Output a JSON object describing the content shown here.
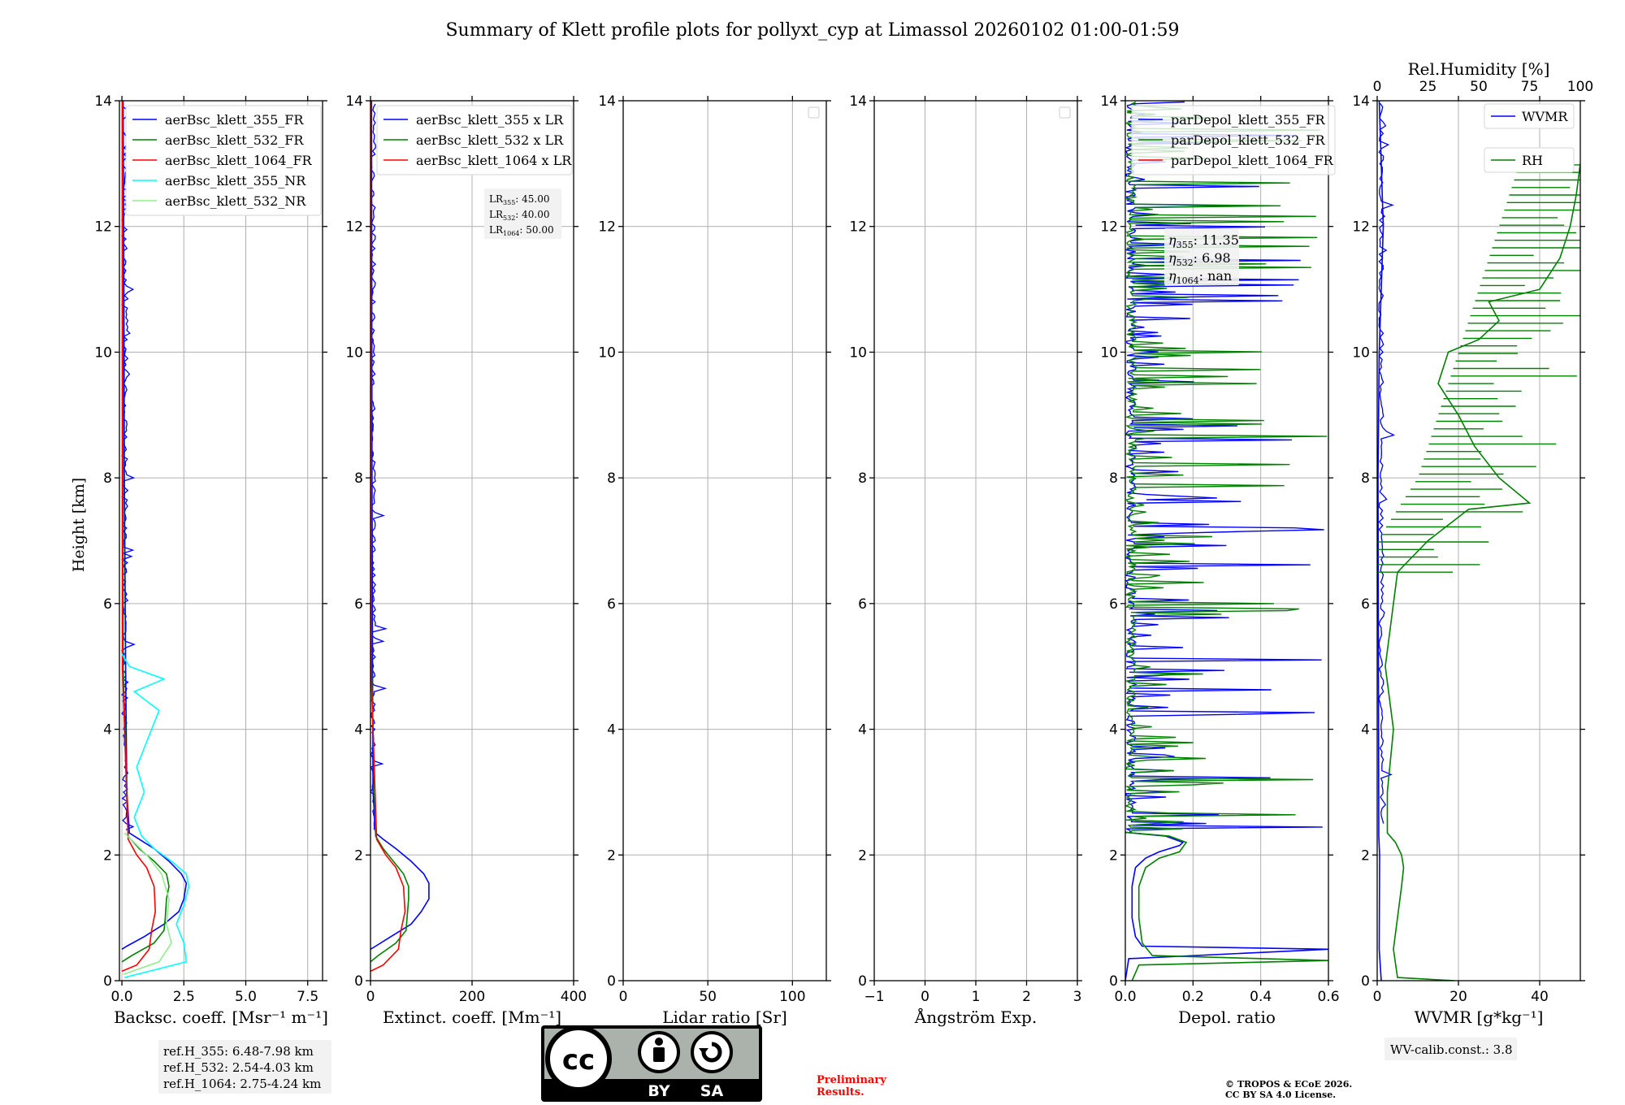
{
  "title": "Summary of Klett profile plots for pollyxt_cyp at Limassol 20260102 01:00-01:59",
  "ylabel": "Height [km]",
  "colors": {
    "blue": "#0000ff",
    "green": "#008000",
    "red": "#ff0000",
    "cyan": "#00ffff",
    "lightgreen": "#90ee90",
    "grid": "#b0b0b0",
    "legend_bg": "#f2f2f2",
    "prelim": "#ff0000"
  },
  "chart_data": [
    {
      "type": "line",
      "id": "bsc",
      "xlabel": "Backsc. coeff. [Msr⁻¹ m⁻¹]",
      "xlim": [
        -0.1,
        8.1
      ],
      "ylim": [
        0,
        14
      ],
      "xticks": [
        0,
        2.5,
        5,
        7.5
      ],
      "xtick_labels": [
        "0.0",
        "2.5",
        "5.0",
        "7.5"
      ],
      "yticks": [
        0,
        2,
        4,
        6,
        8,
        10,
        12,
        14
      ],
      "ytick_labels": [
        "0",
        "2",
        "4",
        "6",
        "8",
        "10",
        "12",
        "14"
      ],
      "legend": [
        "aerBsc_klett_355_FR",
        "aerBsc_klett_532_FR",
        "aerBsc_klett_1064_FR",
        "aerBsc_klett_355_NR",
        "aerBsc_klett_532_NR"
      ],
      "annotation": [
        "ref.H_355: 6.48-7.98 km",
        "ref.H_532: 2.54-4.03 km",
        "ref.H_1064: 2.75-4.24 km"
      ],
      "series": [
        {
          "name": "aerBsc_klett_355_FR",
          "color": "blue",
          "x": [
            0.0,
            0.2,
            0.9,
            1.7,
            2.3,
            2.5,
            2.6,
            2.4,
            1.9,
            1.3,
            0.7,
            0.3,
            0.2,
            0.15,
            0.1,
            0.08,
            0.05
          ],
          "y": [
            0.5,
            0.55,
            0.7,
            0.9,
            1.1,
            1.3,
            1.55,
            1.7,
            1.9,
            2.1,
            2.25,
            2.35,
            3.0,
            5.0,
            8.0,
            11.0,
            14.0
          ]
        },
        {
          "name": "aerBsc_klett_532_FR",
          "color": "green",
          "x": [
            0.0,
            0.4,
            1.3,
            1.7,
            1.75,
            1.8,
            1.9,
            1.8,
            1.3,
            0.7,
            0.25,
            0.05,
            0.03
          ],
          "y": [
            0.3,
            0.4,
            0.6,
            0.8,
            1.0,
            1.3,
            1.5,
            1.7,
            1.9,
            2.1,
            2.3,
            5.0,
            14.0
          ]
        },
        {
          "name": "aerBsc_klett_1064_FR",
          "color": "red",
          "x": [
            0.0,
            0.6,
            1.1,
            1.2,
            1.35,
            1.3,
            1.0,
            0.6,
            0.25,
            0.02,
            0.01
          ],
          "y": [
            0.15,
            0.25,
            0.5,
            0.8,
            1.1,
            1.5,
            1.8,
            2.0,
            2.25,
            5.0,
            14.0
          ]
        },
        {
          "name": "aerBsc_klett_355_NR",
          "color": "cyan",
          "x": [
            0.1,
            2.6,
            2.5,
            2.2,
            2.5,
            2.7,
            2.6,
            2.0,
            1.3,
            0.8,
            0.5,
            0.9,
            0.6,
            1.0,
            1.5,
            0.5,
            1.7,
            0.3,
            0.0
          ],
          "y": [
            0.05,
            0.3,
            0.6,
            0.9,
            1.2,
            1.5,
            1.7,
            1.9,
            2.1,
            2.3,
            2.6,
            3.0,
            3.4,
            3.8,
            4.3,
            4.6,
            4.8,
            5.0,
            5.2
          ]
        },
        {
          "name": "aerBsc_klett_532_NR",
          "color": "lightgreen",
          "x": [
            0.05,
            1.5,
            2.0,
            1.8,
            1.9,
            1.6,
            1.0,
            0.5,
            0.1
          ],
          "y": [
            0.1,
            0.3,
            0.6,
            0.9,
            1.3,
            1.7,
            2.0,
            2.2,
            2.35
          ]
        }
      ]
    },
    {
      "type": "line",
      "id": "ext",
      "xlabel": "Extinct. coeff. [Mm⁻¹]",
      "xlim": [
        0,
        400
      ],
      "ylim": [
        0,
        14
      ],
      "xticks": [
        0,
        200,
        400
      ],
      "xtick_labels": [
        "0",
        "200",
        "400"
      ],
      "yticks": [
        0,
        2,
        4,
        6,
        8,
        10,
        12,
        14
      ],
      "ytick_labels": [
        "0",
        "2",
        "4",
        "6",
        "8",
        "10",
        "12",
        "14"
      ],
      "legend": [
        "aerBsc_klett_355 x LR",
        "aerBsc_klett_532 x LR",
        "aerBsc_klett_1064 x LR"
      ],
      "lr_box": {
        "lines": [
          {
            "base": "LR",
            "sub": "355",
            "val": ": 45.00"
          },
          {
            "base": "LR",
            "sub": "532",
            "val": ": 40.00"
          },
          {
            "base": "LR",
            "sub": "1064",
            "val": ": 50.00"
          }
        ]
      },
      "series": [
        {
          "name": "aerBsc_klett_355 x LR",
          "color": "blue",
          "x": [
            0.0,
            10,
            40,
            80,
            100,
            115,
            115,
            105,
            80,
            50,
            25,
            10,
            5,
            4,
            3,
            2
          ],
          "y": [
            0.5,
            0.55,
            0.7,
            0.9,
            1.1,
            1.3,
            1.55,
            1.7,
            1.9,
            2.1,
            2.25,
            2.35,
            3.0,
            5.0,
            8.0,
            14.0
          ]
        },
        {
          "name": "aerBsc_klett_532 x LR",
          "color": "green",
          "x": [
            0.0,
            15,
            50,
            70,
            72,
            75,
            75,
            65,
            45,
            25,
            10,
            2,
            1
          ],
          "y": [
            0.3,
            0.4,
            0.6,
            0.8,
            1.0,
            1.3,
            1.5,
            1.7,
            1.9,
            2.1,
            2.3,
            5.0,
            14.0
          ]
        },
        {
          "name": "aerBsc_klett_1064 x LR",
          "color": "red",
          "x": [
            0.0,
            25,
            55,
            60,
            68,
            65,
            50,
            30,
            12,
            1,
            0.5
          ],
          "y": [
            0.15,
            0.25,
            0.5,
            0.8,
            1.1,
            1.5,
            1.8,
            2.0,
            2.25,
            5.0,
            14.0
          ]
        }
      ]
    },
    {
      "type": "line",
      "id": "lr",
      "xlabel": "Lidar ratio [Sr]",
      "xlim": [
        0,
        120
      ],
      "ylim": [
        0,
        14
      ],
      "xticks": [
        0,
        50,
        100
      ],
      "xtick_labels": [
        "0",
        "50",
        "100"
      ],
      "yticks": [
        0,
        2,
        4,
        6,
        8,
        10,
        12,
        14
      ],
      "ytick_labels": [
        "0",
        "2",
        "4",
        "6",
        "8",
        "10",
        "12",
        "14"
      ],
      "series": []
    },
    {
      "type": "line",
      "id": "ae",
      "xlabel": "Ångström Exp.",
      "xlim": [
        -1,
        3
      ],
      "ylim": [
        0,
        14
      ],
      "xticks": [
        -1,
        0,
        1,
        2,
        3
      ],
      "xtick_labels": [
        "−1",
        "0",
        "1",
        "2",
        "3"
      ],
      "yticks": [
        0,
        2,
        4,
        6,
        8,
        10,
        12,
        14
      ],
      "ytick_labels": [
        "0",
        "2",
        "4",
        "6",
        "8",
        "10",
        "12",
        "14"
      ],
      "series": []
    },
    {
      "type": "line",
      "id": "dep",
      "xlabel": "Depol. ratio",
      "xlim": [
        0,
        0.6
      ],
      "ylim": [
        0,
        14
      ],
      "xticks": [
        0,
        0.2,
        0.4,
        0.6
      ],
      "xtick_labels": [
        "0.0",
        "0.2",
        "0.4",
        "0.6"
      ],
      "yticks": [
        0,
        2,
        4,
        6,
        8,
        10,
        12,
        14
      ],
      "ytick_labels": [
        "0",
        "2",
        "4",
        "6",
        "8",
        "10",
        "12",
        "14"
      ],
      "legend": [
        "parDepol_klett_355_FR",
        "parDepol_klett_532_FR",
        "parDepol_klett_1064_FR"
      ],
      "eta_box": {
        "lines": [
          {
            "sub": "355",
            "val": ": 11.35"
          },
          {
            "sub": "532",
            "val": ": 6.98"
          },
          {
            "sub": "1064",
            "val": ": nan"
          }
        ]
      },
      "series": [
        {
          "name": "parDepol_klett_355_FR",
          "color": "blue",
          "x": [
            0.0,
            0.01,
            0.6,
            0.05,
            0.03,
            0.02,
            0.02,
            0.03,
            0.06,
            0.1,
            0.16,
            0.17,
            0.12,
            0.0
          ],
          "y": [
            0.0,
            0.35,
            0.5,
            0.55,
            0.7,
            1.0,
            1.5,
            1.8,
            1.95,
            2.05,
            2.15,
            2.2,
            2.3,
            2.36
          ]
        },
        {
          "name": "parDepol_klett_532_FR",
          "color": "green",
          "x": [
            0.02,
            0.04,
            0.6,
            0.08,
            0.05,
            0.04,
            0.04,
            0.06,
            0.1,
            0.16,
            0.18,
            0.13,
            0.0
          ],
          "y": [
            0.0,
            0.25,
            0.32,
            0.4,
            0.6,
            1.0,
            1.5,
            1.8,
            1.95,
            2.05,
            2.2,
            2.3,
            2.36
          ]
        }
      ],
      "noise_region": [
        2.36,
        14.0
      ]
    },
    {
      "type": "line",
      "id": "wv",
      "xlabel": "WVMR [g*kg⁻¹]",
      "x2label": "Rel.Humidity [%]",
      "xlim": [
        0,
        50
      ],
      "x2lim": [
        0,
        100
      ],
      "ylim": [
        0,
        14
      ],
      "xticks": [
        0,
        20,
        40
      ],
      "xtick_labels": [
        "0",
        "20",
        "40"
      ],
      "x2ticks": [
        0,
        25,
        50,
        75,
        100
      ],
      "x2tick_labels": [
        "0",
        "25",
        "50",
        "75",
        "100"
      ],
      "yticks": [
        0,
        2,
        4,
        6,
        8,
        10,
        12,
        14
      ],
      "ytick_labels": [
        "0",
        "2",
        "4",
        "6",
        "8",
        "10",
        "12",
        "14"
      ],
      "legend": [
        "WVMR",
        "RH"
      ],
      "annotation": "WV-calib.const.: 3.8",
      "series": [
        {
          "name": "WVMR",
          "color": "blue",
          "axis": "x",
          "x": [
            1.0,
            0.5,
            0.6,
            0.4,
            0.3,
            0.2,
            0.5,
            1.5,
            0.5
          ],
          "y": [
            0.0,
            0.5,
            2.0,
            2.3,
            5.0,
            8.0,
            10.0,
            12.0,
            14.0
          ]
        },
        {
          "name": "RH",
          "color": "green",
          "axis": "x2",
          "x": [
            38,
            10,
            8,
            10,
            12,
            13,
            12,
            9,
            5,
            5,
            8,
            4,
            8,
            10,
            25,
            45,
            75,
            60,
            48,
            40,
            30,
            35,
            50,
            60,
            55,
            80,
            90,
            95,
            98,
            100
          ],
          "y": [
            0.0,
            0.05,
            0.5,
            1.0,
            1.5,
            1.8,
            2.0,
            2.2,
            2.35,
            3.0,
            4.0,
            5.0,
            6.0,
            6.5,
            7.0,
            7.5,
            7.6,
            8.0,
            8.5,
            9.0,
            9.5,
            10.0,
            10.2,
            10.5,
            10.8,
            11.0,
            11.5,
            12.0,
            12.5,
            13.0
          ]
        }
      ]
    }
  ],
  "footer": {
    "cc_top": "cc",
    "cc_by": "BY",
    "cc_sa": "SA",
    "prelim_1": "Preliminary",
    "prelim_2": "Results.",
    "copyright_1": "© TROPOS & ECoE 2026.",
    "copyright_2": "CC BY SA 4.0 License."
  }
}
